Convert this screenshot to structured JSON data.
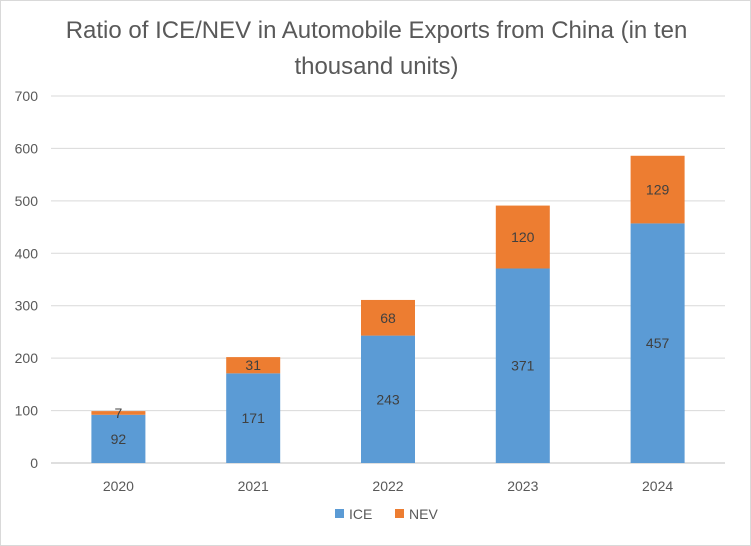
{
  "chart_data": {
    "type": "bar",
    "stacked": true,
    "title": "Ratio of ICE/NEV in Automobile Exports from China (in ten thousand units)",
    "xlabel": "",
    "ylabel": "",
    "categories": [
      "2020",
      "2021",
      "2022",
      "2023",
      "2024"
    ],
    "series": [
      {
        "name": "ICE",
        "values": [
          92,
          171,
          243,
          371,
          457
        ],
        "color": "#5b9bd5"
      },
      {
        "name": "NEV",
        "values": [
          7,
          31,
          68,
          120,
          129
        ],
        "color": "#ed7d31"
      }
    ],
    "ylim": [
      0,
      700
    ],
    "yticks": [
      0,
      100,
      200,
      300,
      400,
      500,
      600,
      700
    ],
    "grid": true,
    "legend_position": "bottom",
    "data_labels": true
  }
}
